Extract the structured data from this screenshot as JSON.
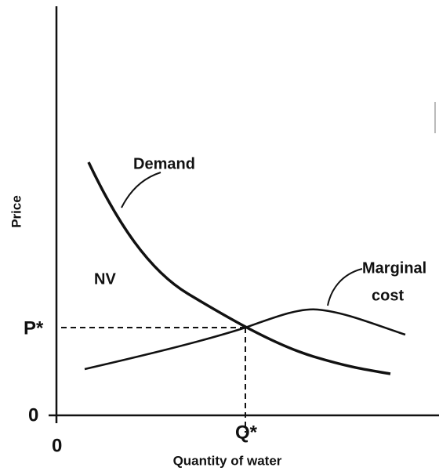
{
  "labels": {
    "demand": "Demand",
    "marginal_cost": [
      "Marginal",
      "cost"
    ],
    "nv": "NV",
    "p_star": "P*",
    "q_star": "Q*",
    "y_origin": "0",
    "x_origin": "0",
    "y_axis": "Price",
    "x_axis": "Quantity of water"
  }
}
